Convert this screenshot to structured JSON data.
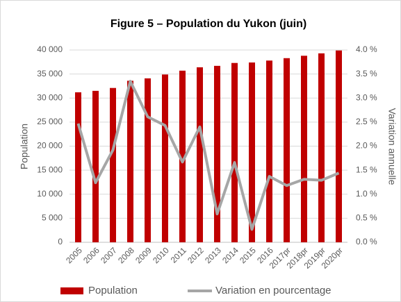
{
  "chart_data": {
    "type": "bar-line",
    "title": "Figure 5 – Population du Yukon (juin)",
    "ylabel": "Population",
    "y2label": "Variation annuelle",
    "categories": [
      "2005",
      "2006",
      "2007",
      "2008",
      "2009",
      "2010",
      "2011",
      "2012",
      "2013",
      "2014",
      "2015",
      "2016",
      "2017pr",
      "2018pr",
      "2019pr",
      "2020pr"
    ],
    "series": [
      {
        "name": "Population",
        "type": "bar",
        "color": "#c00000",
        "values": [
          31200,
          31500,
          32100,
          33600,
          34100,
          34900,
          35700,
          36400,
          36700,
          37300,
          37400,
          37800,
          38300,
          38800,
          39300,
          39900
        ]
      },
      {
        "name": "Variation en pourcentage",
        "type": "line",
        "axis": "y2",
        "color": "#a6a6a6",
        "values": [
          2.47,
          1.24,
          1.92,
          3.35,
          2.61,
          2.43,
          1.67,
          2.4,
          0.59,
          1.66,
          0.27,
          1.37,
          1.18,
          1.31,
          1.29,
          1.44
        ]
      }
    ],
    "ylim": [
      0,
      40000
    ],
    "yticks": [
      0,
      {
        "value": 5000,
        "label": "5 000"
      },
      {
        "value": 10000,
        "label": "10 000"
      },
      {
        "value": 15000,
        "label": "15 000"
      },
      {
        "value": 20000,
        "label": "20 000"
      },
      {
        "value": 25000,
        "label": "25 000"
      },
      {
        "value": 30000,
        "label": "30 000"
      },
      {
        "value": 35000,
        "label": "35 000"
      },
      {
        "value": 40000,
        "label": "40 000"
      }
    ],
    "y2lim": [
      0,
      4
    ],
    "y2ticks": [
      {
        "value": 0,
        "label": "0.0 %"
      },
      {
        "value": 0.5,
        "label": "0.5 %"
      },
      {
        "value": 1,
        "label": "1.0 %"
      },
      {
        "value": 1.5,
        "label": "1.5 %"
      },
      {
        "value": 2,
        "label": "2.0 %"
      },
      {
        "value": 2.5,
        "label": "2.5 %"
      },
      {
        "value": 3,
        "label": "3.0 %"
      },
      {
        "value": 3.5,
        "label": "3.5 %"
      },
      {
        "value": 4,
        "label": "4.0 %"
      }
    ],
    "legend": "bottom"
  }
}
